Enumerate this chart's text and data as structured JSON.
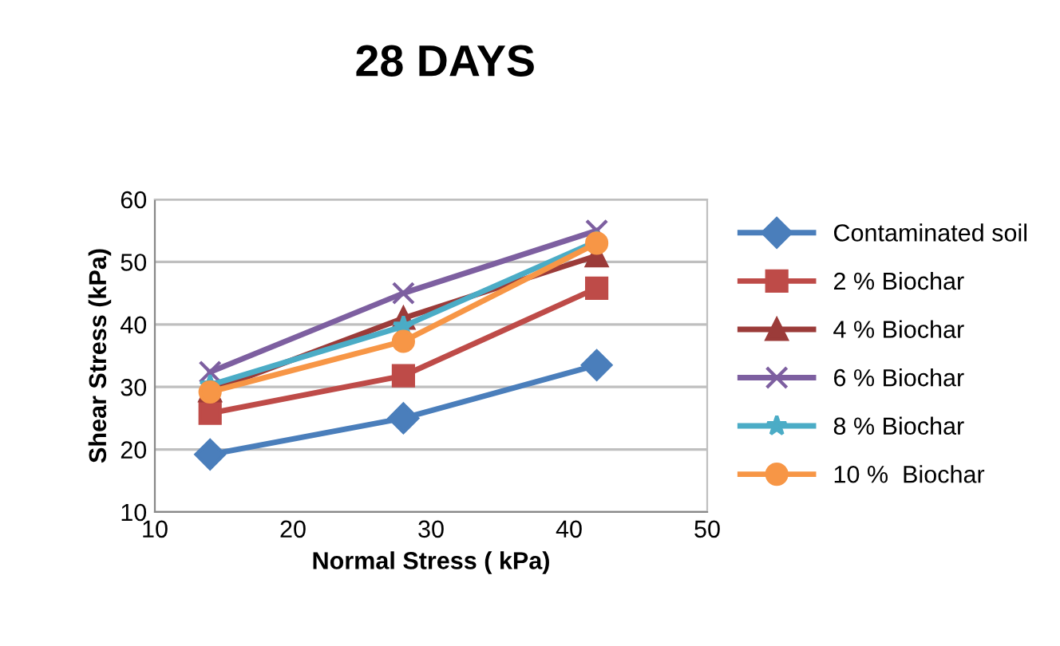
{
  "chart_data": {
    "type": "line",
    "title": "28 DAYS",
    "xlabel": "Normal Stress ( kPa)",
    "ylabel": "Shear Stress (kPa)",
    "x": [
      14,
      28,
      42
    ],
    "series": [
      {
        "name": "Contaminated soil",
        "color": "#4a7ebb",
        "marker": "diamond",
        "values": [
          19.2,
          25,
          33.5
        ]
      },
      {
        "name": "2 % Biochar",
        "color": "#be4b48",
        "marker": "square",
        "values": [
          25.8,
          31.8,
          45.8
        ]
      },
      {
        "name": "4 % Biochar",
        "color": "#9b3b39",
        "marker": "triangle",
        "values": [
          29.4,
          41,
          51
        ]
      },
      {
        "name": "6 % Biochar",
        "color": "#7d5fa0",
        "marker": "cross",
        "values": [
          32.4,
          45,
          55
        ]
      },
      {
        "name": "8 % Biochar",
        "color": "#4bacc6",
        "marker": "star",
        "values": [
          30.3,
          39.7,
          53.3
        ]
      },
      {
        "name": "10 %  Biochar",
        "color": "#f79646",
        "marker": "circle",
        "values": [
          29.2,
          37.3,
          53
        ]
      }
    ],
    "xlim": [
      10,
      50
    ],
    "xticks": [
      10,
      20,
      30,
      40,
      50
    ],
    "ylim": [
      10,
      60
    ],
    "yticks": [
      10,
      20,
      30,
      40,
      50,
      60
    ],
    "grid": "y",
    "legend": "right"
  }
}
